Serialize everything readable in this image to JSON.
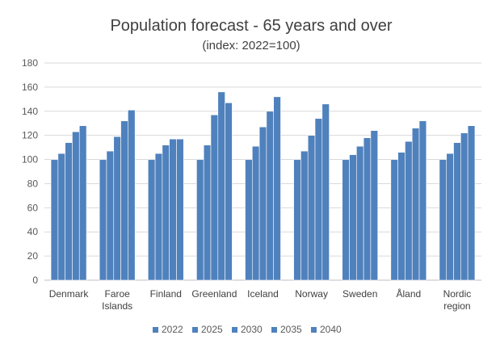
{
  "chart_data": {
    "type": "bar",
    "title": "Population forecast - 65 years and over",
    "subtitle": "(index: 2022=100)",
    "xlabel": "",
    "ylabel": "",
    "ylim": [
      0,
      180
    ],
    "yticks": [
      0,
      20,
      40,
      60,
      80,
      100,
      120,
      140,
      160,
      180
    ],
    "grid": true,
    "legend_position": "bottom",
    "bar_color": "#4f81bd",
    "categories": [
      [
        "Denmark"
      ],
      [
        "Faroe",
        "Islands"
      ],
      [
        "Finland"
      ],
      [
        "Greenland"
      ],
      [
        "Iceland"
      ],
      [
        "Norway"
      ],
      [
        "Sweden"
      ],
      [
        "Åland"
      ],
      [
        "Nordic",
        "region"
      ]
    ],
    "series": [
      {
        "name": "2022",
        "values": [
          100,
          100,
          100,
          100,
          100,
          100,
          100,
          100,
          100
        ]
      },
      {
        "name": "2025",
        "values": [
          105,
          107,
          105,
          112,
          111,
          107,
          104,
          106,
          105
        ]
      },
      {
        "name": "2030",
        "values": [
          114,
          119,
          112,
          137,
          127,
          120,
          111,
          115,
          114
        ]
      },
      {
        "name": "2035",
        "values": [
          123,
          132,
          117,
          156,
          140,
          134,
          118,
          126,
          122
        ]
      },
      {
        "name": "2040",
        "values": [
          128,
          141,
          117,
          147,
          152,
          146,
          124,
          132,
          128
        ]
      }
    ]
  }
}
